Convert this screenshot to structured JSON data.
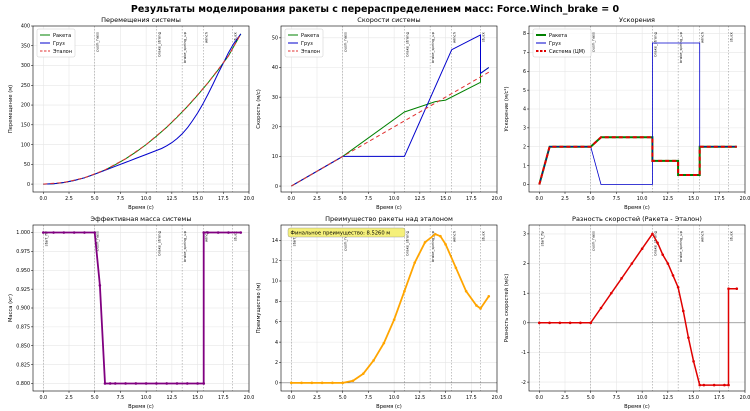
{
  "suptitle": "Результаты моделирования ракеты с перераспределением масс: Force.Winch_brake = 0",
  "colors": {
    "rocket": "#008000",
    "cargo": "#0000cc",
    "ref": "#e03030",
    "com": "#e00000",
    "mass": "#800080",
    "adv": "#ffa500",
    "vline": "#888888"
  },
  "events": [
    {
      "t": 0.0,
      "label": "start_fly"
    },
    {
      "t": 5.0,
      "label": "push_hass"
    },
    {
      "t": 11.0,
      "label": "brake_strong"
    },
    {
      "t": 13.5,
      "label": "brake_spring_up"
    },
    {
      "t": 15.6,
      "label": "winch"
    },
    {
      "t": 18.4,
      "label": "stuck"
    }
  ],
  "chart_data": [
    {
      "type": "line",
      "title": "Перемещения системы",
      "xlabel": "Время (с)",
      "ylabel": "Перемещение (м)",
      "xlim": [
        -1,
        20
      ],
      "ylim": [
        -20,
        400
      ],
      "xticks": [
        0.0,
        2.5,
        5.0,
        7.5,
        10.0,
        12.5,
        15.0,
        17.5,
        20.0
      ],
      "yticks": [
        0,
        50,
        100,
        150,
        200,
        250,
        300,
        350,
        400
      ],
      "ytick_decimals": 0,
      "legend": "top-left",
      "event_labels": [
        5,
        11,
        13.5,
        15.6,
        18.4
      ],
      "series": [
        {
          "name": "Ракета",
          "color": "#008000",
          "x": [
            0,
            1,
            2,
            3,
            4,
            5,
            6,
            7,
            8,
            9,
            10,
            11,
            12,
            13,
            14,
            15,
            16,
            17,
            18,
            19.2
          ],
          "y": [
            0,
            1,
            4,
            9,
            16,
            25,
            36,
            49,
            64,
            81,
            100,
            121,
            144,
            169,
            196,
            225,
            256,
            289,
            324,
            380
          ]
        },
        {
          "name": "Груз",
          "color": "#0000cc",
          "x": [
            0,
            1,
            2,
            3,
            4,
            5,
            6,
            7,
            8,
            9,
            10,
            11,
            11.5,
            12,
            12.5,
            13,
            13.5,
            14,
            14.5,
            15,
            15.5,
            16,
            16.5,
            17,
            17.5,
            18,
            18.5,
            19.2
          ],
          "y": [
            0,
            1,
            4,
            9,
            16,
            25,
            35,
            45,
            55,
            65,
            75,
            85,
            90,
            97,
            105,
            115,
            127,
            142,
            160,
            180,
            202,
            227,
            253,
            280,
            306,
            332,
            355,
            380
          ]
        },
        {
          "name": "Эталон",
          "color": "#e03030",
          "dash": "4,3",
          "x": [
            0,
            2,
            4,
            6,
            8,
            10,
            12,
            14,
            16,
            18,
            19.2
          ],
          "y": [
            0,
            4,
            16,
            36,
            64,
            100,
            144,
            196,
            256,
            324,
            380
          ]
        }
      ]
    },
    {
      "type": "line",
      "title": "Скорости системы",
      "xlabel": "Время (с)",
      "ylabel": "Скорость (м/с)",
      "xlim": [
        -1,
        20
      ],
      "ylim": [
        -2,
        54
      ],
      "xticks": [
        0.0,
        2.5,
        5.0,
        7.5,
        10.0,
        12.5,
        15.0,
        17.5,
        20.0
      ],
      "yticks": [
        0,
        10,
        20,
        30,
        40,
        50
      ],
      "ytick_decimals": 0,
      "legend": "top-left",
      "event_labels": [
        5,
        11,
        13.5,
        15.6,
        18.4
      ],
      "series": [
        {
          "name": "Ракета",
          "color": "#008000",
          "x": [
            0,
            5,
            11,
            14,
            15,
            18.4,
            18.4,
            19.2
          ],
          "y": [
            0,
            10,
            25,
            28.5,
            29,
            35,
            38,
            40
          ]
        },
        {
          "name": "Груз",
          "color": "#0000cc",
          "x": [
            0,
            5,
            11,
            15.6,
            18.4,
            18.4,
            19.2
          ],
          "y": [
            0,
            10,
            10,
            46,
            51,
            38,
            40
          ]
        },
        {
          "name": "Эталон",
          "color": "#e03030",
          "dash": "4,3",
          "x": [
            0,
            19.2
          ],
          "y": [
            0,
            38.4
          ]
        }
      ]
    },
    {
      "type": "line",
      "title": "Ускорения",
      "xlabel": "Время (с)",
      "ylabel": "Ускорение (м/с²)",
      "xlim": [
        -1,
        20
      ],
      "ylim": [
        -0.4,
        8.4
      ],
      "xticks": [
        0.0,
        2.5,
        5.0,
        7.5,
        10.0,
        12.5,
        15.0,
        17.5,
        20.0
      ],
      "yticks": [
        0,
        1,
        2,
        3,
        4,
        5,
        6,
        7,
        8
      ],
      "ytick_decimals": 0,
      "legend": "top-left",
      "event_labels": [
        5,
        11,
        13.5,
        15.6,
        18.4
      ],
      "series": [
        {
          "name": "Ракета",
          "color": "#008000",
          "width": 2,
          "x": [
            0,
            1,
            5,
            6,
            11,
            11,
            13.5,
            13.5,
            15.6,
            15.6,
            19.2
          ],
          "y": [
            0,
            2,
            2,
            2.5,
            2.5,
            1.25,
            1.25,
            0.5,
            0.5,
            2,
            2
          ]
        },
        {
          "name": "Груз",
          "color": "#0000cc",
          "width": 0.8,
          "x": [
            0,
            1,
            5,
            6,
            11,
            11,
            15.6,
            15.6,
            19.2
          ],
          "y": [
            0,
            2,
            2,
            0,
            0,
            7.5,
            7.5,
            2,
            2
          ]
        },
        {
          "name": "Система (ЦМ)",
          "color": "#e00000",
          "dash": "4,3",
          "width": 2,
          "x": [
            0,
            1,
            5,
            6,
            11,
            11,
            13.5,
            13.5,
            15.6,
            15.6,
            19.2
          ],
          "y": [
            0,
            2,
            2,
            2.5,
            2.5,
            1.25,
            1.25,
            0.5,
            0.5,
            2,
            2
          ]
        }
      ]
    },
    {
      "type": "line",
      "title": "Эффективная масса системы",
      "xlabel": "Время (с)",
      "ylabel": "Масса (кг)",
      "xlim": [
        -1,
        20
      ],
      "ylim": [
        0.79,
        1.01
      ],
      "xticks": [
        0.0,
        2.5,
        5.0,
        7.5,
        10.0,
        12.5,
        15.0,
        17.5,
        20.0
      ],
      "yticks": [
        0.8,
        0.825,
        0.85,
        0.875,
        0.9,
        0.925,
        0.95,
        0.975,
        1.0
      ],
      "ytick_decimals": 3,
      "legend": "none",
      "event_labels": [
        0,
        5,
        11,
        13.5,
        15.6,
        18.4
      ],
      "series": [
        {
          "name": "Масса",
          "color": "#800080",
          "width": 1.8,
          "markers": true,
          "x": [
            0,
            1,
            2,
            3,
            4,
            5,
            5.5,
            6,
            6.5,
            7,
            8,
            9,
            10,
            11,
            12,
            13,
            14,
            15,
            15.6,
            15.6,
            16,
            17,
            18,
            19.2
          ],
          "y": [
            1,
            1,
            1,
            1,
            1,
            1,
            0.93,
            0.8,
            0.8,
            0.8,
            0.8,
            0.8,
            0.8,
            0.8,
            0.8,
            0.8,
            0.8,
            0.8,
            0.8,
            1,
            1,
            1,
            1,
            1
          ]
        }
      ]
    },
    {
      "type": "line",
      "title": "Преимущество ракеты над эталоном",
      "xlabel": "Время (с)",
      "ylabel": "Преимущество (м)",
      "xlim": [
        -1,
        20
      ],
      "ylim": [
        -0.8,
        15.5
      ],
      "xticks": [
        0.0,
        2.5,
        5.0,
        7.5,
        10.0,
        12.5,
        15.0,
        17.5,
        20.0
      ],
      "yticks": [
        0,
        2,
        4,
        6,
        8,
        10,
        12,
        14
      ],
      "ytick_decimals": 0,
      "legend": "none",
      "event_labels": [
        0,
        5,
        11,
        13.5,
        15.6,
        18.4
      ],
      "annotation": "Финальное преимущество: 8.5260 м",
      "series": [
        {
          "name": "Преимущество",
          "color": "#ffa500",
          "width": 1.8,
          "markers": true,
          "x": [
            0,
            1,
            2,
            3,
            4,
            5,
            6,
            7,
            8,
            9,
            10,
            11,
            12,
            13,
            14,
            14.5,
            15,
            16,
            17,
            18,
            18.4,
            19.2
          ],
          "y": [
            0,
            0,
            0,
            0,
            0,
            0,
            0.2,
            0.9,
            2.2,
            3.9,
            6.2,
            9.0,
            11.8,
            13.8,
            14.6,
            14.4,
            13.6,
            11.3,
            9.0,
            7.6,
            7.3,
            8.5
          ]
        }
      ]
    },
    {
      "type": "line",
      "title": "Разность скоростей (Ракета - Эталон)",
      "xlabel": "Время (с)",
      "ylabel": "Разность скоростей (м/с)",
      "xlim": [
        -1,
        20
      ],
      "ylim": [
        -2.3,
        3.3
      ],
      "xticks": [
        0.0,
        2.5,
        5.0,
        7.5,
        10.0,
        12.5,
        15.0,
        17.5,
        20.0
      ],
      "yticks": [
        -2,
        -1,
        0,
        1,
        2,
        3
      ],
      "ytick_decimals": 0,
      "legend": "none",
      "event_labels": [
        0,
        5,
        11,
        13.5,
        15.6,
        18.4
      ],
      "series": [
        {
          "name": "Разность",
          "color": "#e00000",
          "width": 1.5,
          "markers": true,
          "x": [
            0,
            1,
            2,
            3,
            4,
            5,
            6,
            7,
            8,
            9,
            10,
            11,
            11.5,
            12,
            12.5,
            13,
            13.5,
            14,
            14.5,
            15,
            15.6,
            16,
            17,
            18,
            18.4,
            18.4,
            19.2
          ],
          "y": [
            0,
            0,
            0,
            0,
            0,
            0,
            0.5,
            1.0,
            1.5,
            2.0,
            2.5,
            3.0,
            2.7,
            2.3,
            2.0,
            1.6,
            1.2,
            0.4,
            -0.5,
            -1.3,
            -2.1,
            -2.1,
            -2.1,
            -2.1,
            -2.1,
            1.15,
            1.15
          ]
        }
      ]
    }
  ]
}
